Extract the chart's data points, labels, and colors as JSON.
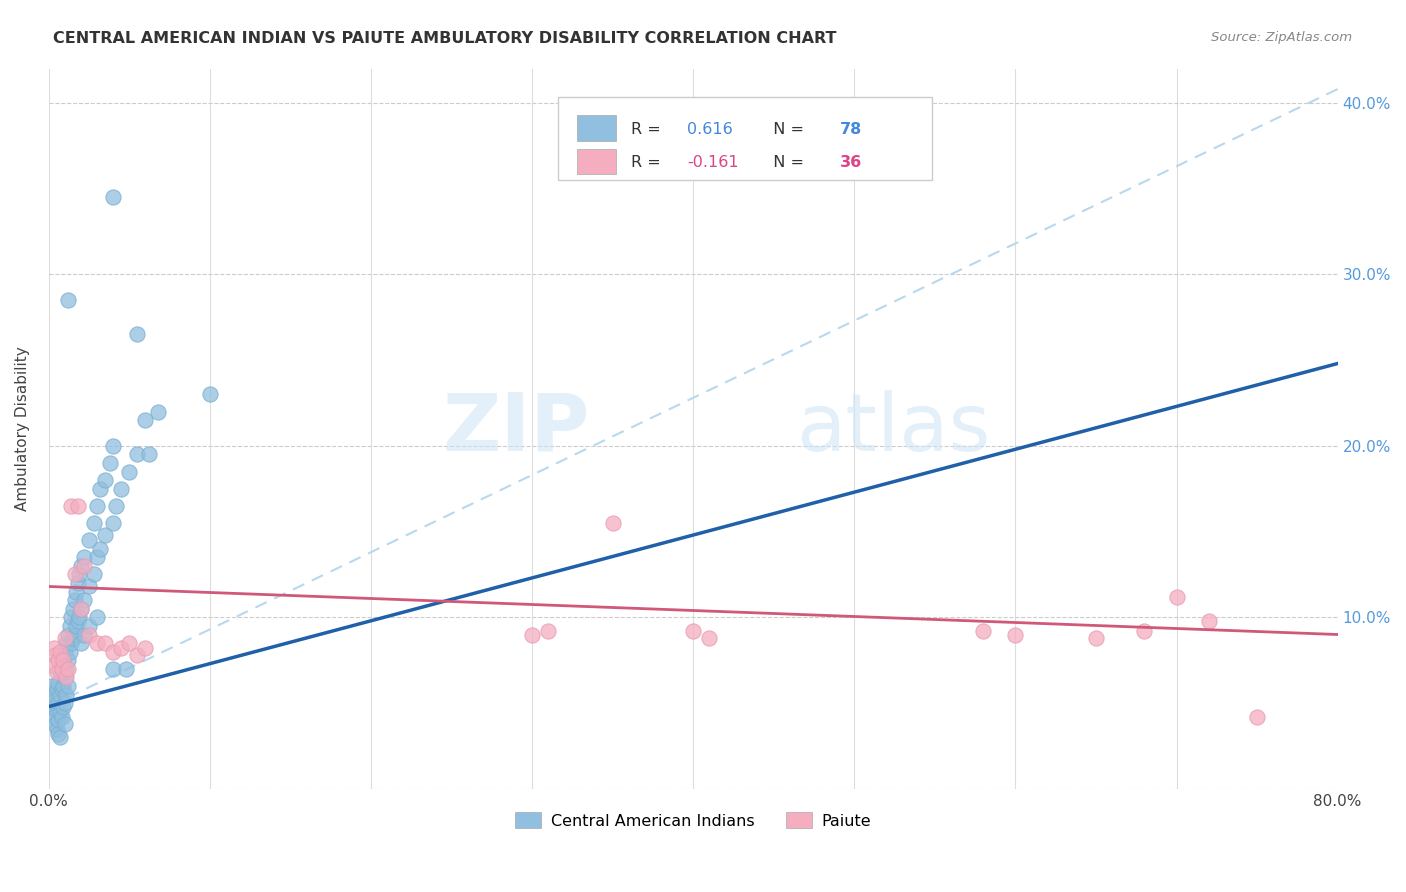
{
  "title": "CENTRAL AMERICAN INDIAN VS PAIUTE AMBULATORY DISABILITY CORRELATION CHART",
  "source": "Source: ZipAtlas.com",
  "ylabel": "Ambulatory Disability",
  "xlim": [
    0.0,
    0.8
  ],
  "ylim": [
    0.0,
    0.42
  ],
  "x_ticks": [
    0.0,
    0.1,
    0.2,
    0.3,
    0.4,
    0.5,
    0.6,
    0.7,
    0.8
  ],
  "y_ticks": [
    0.0,
    0.1,
    0.2,
    0.3,
    0.4
  ],
  "y_tick_labels_right": [
    "",
    "10.0%",
    "20.0%",
    "30.0%",
    "40.0%"
  ],
  "watermark_zip": "ZIP",
  "watermark_atlas": "atlas",
  "blue_color": "#90bfdf",
  "blue_edge_color": "#7aafd0",
  "pink_color": "#f4aec0",
  "pink_edge_color": "#e89ab0",
  "blue_line_color": "#2060a8",
  "pink_line_color": "#d05878",
  "dashed_line_color": "#b8d8ee",
  "blue_scatter": [
    [
      0.001,
      0.05
    ],
    [
      0.002,
      0.06
    ],
    [
      0.002,
      0.048
    ],
    [
      0.003,
      0.055
    ],
    [
      0.003,
      0.042
    ],
    [
      0.004,
      0.052
    ],
    [
      0.004,
      0.038
    ],
    [
      0.005,
      0.058
    ],
    [
      0.005,
      0.045
    ],
    [
      0.005,
      0.035
    ],
    [
      0.006,
      0.062
    ],
    [
      0.006,
      0.05
    ],
    [
      0.006,
      0.04
    ],
    [
      0.006,
      0.032
    ],
    [
      0.007,
      0.068
    ],
    [
      0.007,
      0.055
    ],
    [
      0.007,
      0.045
    ],
    [
      0.007,
      0.03
    ],
    [
      0.008,
      0.072
    ],
    [
      0.008,
      0.058
    ],
    [
      0.008,
      0.042
    ],
    [
      0.009,
      0.075
    ],
    [
      0.009,
      0.06
    ],
    [
      0.009,
      0.048
    ],
    [
      0.01,
      0.08
    ],
    [
      0.01,
      0.065
    ],
    [
      0.01,
      0.05
    ],
    [
      0.01,
      0.038
    ],
    [
      0.011,
      0.085
    ],
    [
      0.011,
      0.07
    ],
    [
      0.011,
      0.055
    ],
    [
      0.012,
      0.09
    ],
    [
      0.012,
      0.075
    ],
    [
      0.012,
      0.06
    ],
    [
      0.013,
      0.095
    ],
    [
      0.013,
      0.08
    ],
    [
      0.014,
      0.1
    ],
    [
      0.014,
      0.085
    ],
    [
      0.015,
      0.105
    ],
    [
      0.015,
      0.088
    ],
    [
      0.016,
      0.11
    ],
    [
      0.016,
      0.09
    ],
    [
      0.017,
      0.115
    ],
    [
      0.017,
      0.095
    ],
    [
      0.018,
      0.12
    ],
    [
      0.018,
      0.098
    ],
    [
      0.019,
      0.125
    ],
    [
      0.019,
      0.1
    ],
    [
      0.02,
      0.13
    ],
    [
      0.02,
      0.105
    ],
    [
      0.02,
      0.085
    ],
    [
      0.022,
      0.135
    ],
    [
      0.022,
      0.11
    ],
    [
      0.022,
      0.09
    ],
    [
      0.025,
      0.145
    ],
    [
      0.025,
      0.118
    ],
    [
      0.025,
      0.095
    ],
    [
      0.028,
      0.155
    ],
    [
      0.028,
      0.125
    ],
    [
      0.03,
      0.165
    ],
    [
      0.03,
      0.135
    ],
    [
      0.03,
      0.1
    ],
    [
      0.032,
      0.175
    ],
    [
      0.032,
      0.14
    ],
    [
      0.035,
      0.18
    ],
    [
      0.035,
      0.148
    ],
    [
      0.038,
      0.19
    ],
    [
      0.04,
      0.2
    ],
    [
      0.04,
      0.155
    ],
    [
      0.04,
      0.07
    ],
    [
      0.042,
      0.165
    ],
    [
      0.045,
      0.175
    ],
    [
      0.048,
      0.07
    ],
    [
      0.05,
      0.185
    ],
    [
      0.055,
      0.195
    ],
    [
      0.06,
      0.215
    ],
    [
      0.062,
      0.195
    ],
    [
      0.068,
      0.22
    ],
    [
      0.1,
      0.23
    ],
    [
      0.04,
      0.345
    ],
    [
      0.012,
      0.285
    ],
    [
      0.055,
      0.265
    ]
  ],
  "pink_scatter": [
    [
      0.002,
      0.072
    ],
    [
      0.003,
      0.082
    ],
    [
      0.004,
      0.078
    ],
    [
      0.005,
      0.068
    ],
    [
      0.006,
      0.075
    ],
    [
      0.007,
      0.08
    ],
    [
      0.008,
      0.07
    ],
    [
      0.009,
      0.075
    ],
    [
      0.01,
      0.088
    ],
    [
      0.011,
      0.065
    ],
    [
      0.012,
      0.07
    ],
    [
      0.014,
      0.165
    ],
    [
      0.016,
      0.125
    ],
    [
      0.018,
      0.165
    ],
    [
      0.02,
      0.105
    ],
    [
      0.022,
      0.13
    ],
    [
      0.025,
      0.09
    ],
    [
      0.03,
      0.085
    ],
    [
      0.035,
      0.085
    ],
    [
      0.04,
      0.08
    ],
    [
      0.045,
      0.082
    ],
    [
      0.05,
      0.085
    ],
    [
      0.055,
      0.078
    ],
    [
      0.06,
      0.082
    ],
    [
      0.3,
      0.09
    ],
    [
      0.31,
      0.092
    ],
    [
      0.35,
      0.155
    ],
    [
      0.4,
      0.092
    ],
    [
      0.41,
      0.088
    ],
    [
      0.58,
      0.092
    ],
    [
      0.6,
      0.09
    ],
    [
      0.65,
      0.088
    ],
    [
      0.68,
      0.092
    ],
    [
      0.7,
      0.112
    ],
    [
      0.72,
      0.098
    ],
    [
      0.75,
      0.042
    ]
  ],
  "blue_trend": [
    0.0,
    0.048,
    0.8,
    0.248
  ],
  "pink_trend": [
    0.0,
    0.118,
    0.8,
    0.09
  ],
  "dashed_trend": [
    0.0,
    0.048,
    0.8,
    0.408
  ]
}
